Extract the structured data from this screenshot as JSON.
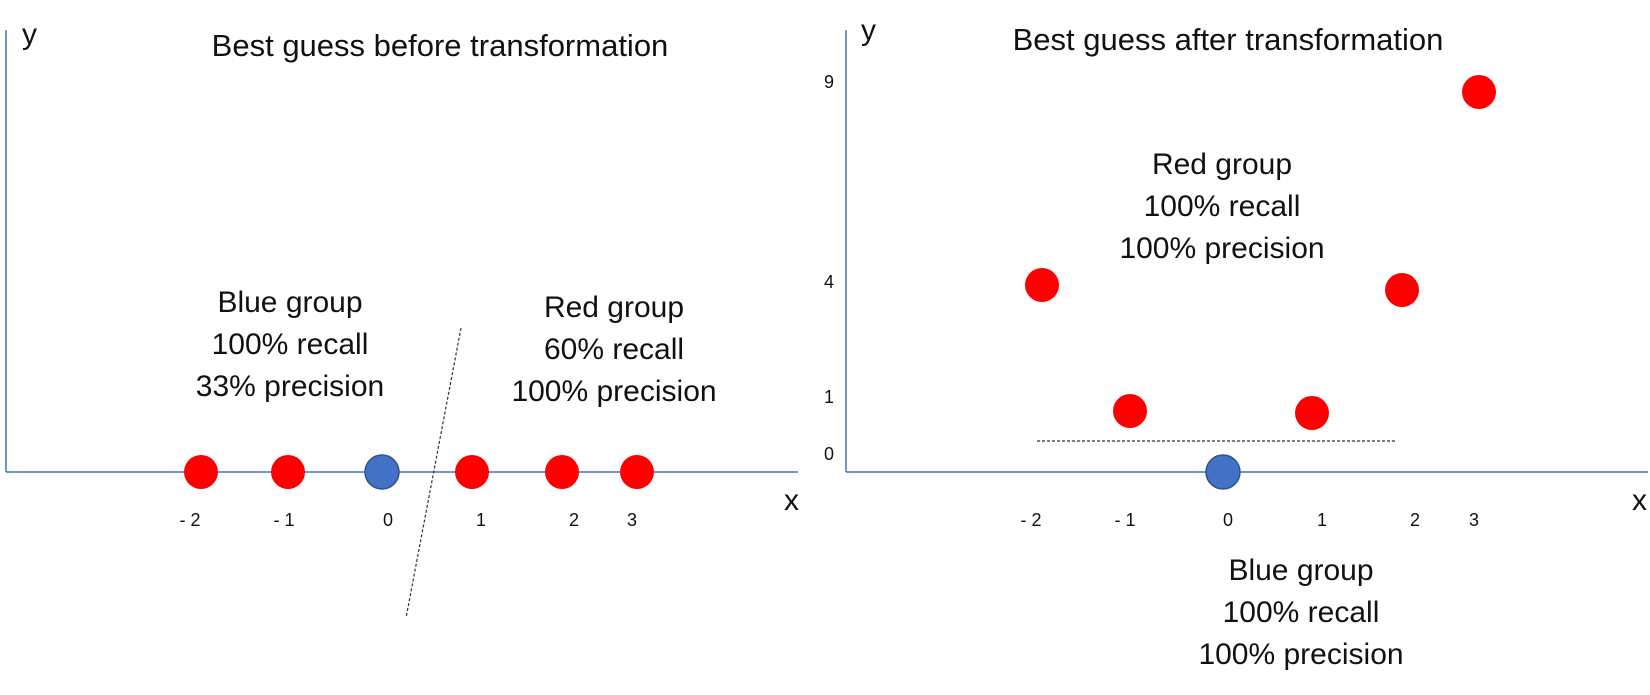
{
  "colors": {
    "red": "#ff0000",
    "blue": "#4472c4",
    "axis": "#4472c4",
    "separator": "#333333"
  },
  "left_panel": {
    "title": "Best guess before transformation",
    "x_axis_label": "x",
    "y_axis_label": "y",
    "x_tick_labels": [
      "- 2",
      "- 1",
      "0",
      "1",
      "2",
      "3"
    ],
    "points": [
      {
        "x": -2,
        "y": 0,
        "group": "red"
      },
      {
        "x": -1,
        "y": 0,
        "group": "red"
      },
      {
        "x": 0,
        "y": 0,
        "group": "blue"
      },
      {
        "x": 1,
        "y": 0,
        "group": "red"
      },
      {
        "x": 2,
        "y": 0,
        "group": "red"
      },
      {
        "x": 3,
        "y": 0,
        "group": "red"
      }
    ],
    "blue_group": {
      "lines": [
        "Blue group",
        "100% recall",
        "33% precision"
      ]
    },
    "red_group": {
      "lines": [
        "Red group",
        "60% recall",
        "100% precision"
      ]
    }
  },
  "right_panel": {
    "title": "Best guess after transformation",
    "x_axis_label": "x",
    "y_axis_label": "y",
    "x_tick_labels": [
      "- 2",
      "- 1",
      "0",
      "1",
      "2",
      "3"
    ],
    "y_tick_labels": [
      "9",
      "4",
      "1",
      "0"
    ],
    "points": [
      {
        "x": -2,
        "y": 4,
        "group": "red"
      },
      {
        "x": -1,
        "y": 1,
        "group": "red"
      },
      {
        "x": 0,
        "y": 0,
        "group": "blue"
      },
      {
        "x": 1,
        "y": 1,
        "group": "red"
      },
      {
        "x": 2,
        "y": 4,
        "group": "red"
      },
      {
        "x": 3,
        "y": 9,
        "group": "red"
      }
    ],
    "red_group": {
      "lines": [
        "Red group",
        "100% recall",
        "100% precision"
      ]
    },
    "blue_group": {
      "lines": [
        "Blue group",
        "100% recall",
        "100% precision"
      ]
    }
  }
}
